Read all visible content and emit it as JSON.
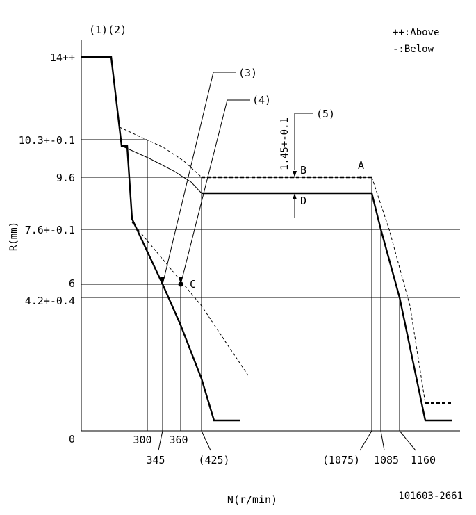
{
  "diagram": {
    "header_labels": "(1)(2)",
    "legend": {
      "above": "++:Above",
      "below": "-:Below"
    },
    "y_axis": {
      "title": "R(mm)",
      "ticks": [
        "14++",
        "10.3+-0.1",
        "9.6",
        "7.6+-0.1",
        "6",
        "4.2+-0.4",
        "0"
      ]
    },
    "x_axis": {
      "title": "N(r/min)",
      "ticks": [
        "300",
        "345",
        "360",
        "(425)",
        "(1075)",
        "1085",
        "1160"
      ]
    },
    "callouts": [
      "(3)",
      "(4)",
      "(5)"
    ],
    "tolerance_label": "1.45+-0.1",
    "points": [
      "A",
      "B",
      "C",
      "D"
    ],
    "part_number": "101603-2661"
  }
}
